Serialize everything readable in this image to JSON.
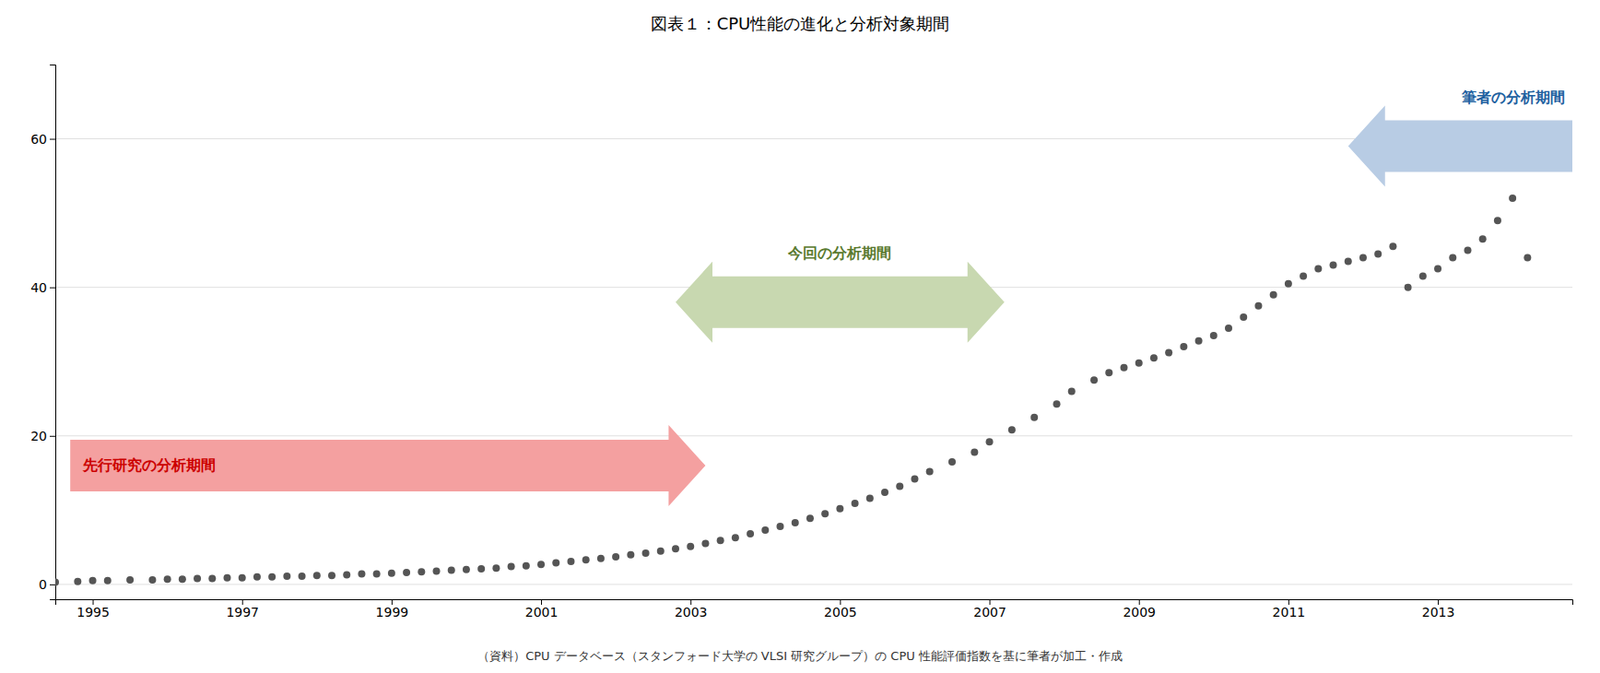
{
  "chart_data": {
    "type": "scatter",
    "title": "図表１：CPU性能の進化と分析対象期間",
    "caption": "（資料）CPU データベース（スタンフォード大学の VLSI 研究グループ）の CPU 性能評価指数を基に筆者が加工・作成",
    "color": "#555555",
    "grid": true,
    "xlim": [
      1994.5,
      2014.8
    ],
    "xticks": [
      1995,
      1997,
      1999,
      2001,
      2003,
      2005,
      2007,
      2009,
      2011,
      2013
    ],
    "ylim": [
      -2,
      70
    ],
    "yticks": [
      0,
      20,
      40,
      60
    ],
    "x": [
      1994.5,
      1994.8,
      1995.0,
      1995.2,
      1995.5,
      1995.8,
      1996.0,
      1996.2,
      1996.4,
      1996.6,
      1996.8,
      1997.0,
      1997.2,
      1997.4,
      1997.6,
      1997.8,
      1998.0,
      1998.2,
      1998.4,
      1998.6,
      1998.8,
      1999.0,
      1999.2,
      1999.4,
      1999.6,
      1999.8,
      2000.0,
      2000.2,
      2000.4,
      2000.6,
      2000.8,
      2001.0,
      2001.2,
      2001.4,
      2001.6,
      2001.8,
      2002.0,
      2002.2,
      2002.4,
      2002.6,
      2002.8,
      2003.0,
      2003.2,
      2003.4,
      2003.6,
      2003.8,
      2004.0,
      2004.2,
      2004.4,
      2004.6,
      2004.8,
      2005.0,
      2005.2,
      2005.4,
      2005.6,
      2005.8,
      2006.0,
      2006.2,
      2006.5,
      2006.8,
      2007.0,
      2007.3,
      2007.6,
      2007.9,
      2008.1,
      2008.4,
      2008.6,
      2008.8,
      2009.0,
      2009.2,
      2009.4,
      2009.6,
      2009.8,
      2010.0,
      2010.2,
      2010.4,
      2010.6,
      2010.8,
      2011.0,
      2011.2,
      2011.4,
      2011.6,
      2011.8,
      2012.0,
      2012.2,
      2012.4,
      2012.6,
      2012.8,
      2013.0,
      2013.2,
      2013.4,
      2013.6,
      2013.8,
      2014.0,
      2014.2
    ],
    "values": [
      0.3,
      0.4,
      0.5,
      0.5,
      0.6,
      0.6,
      0.7,
      0.7,
      0.8,
      0.8,
      0.9,
      0.9,
      1.0,
      1.0,
      1.1,
      1.1,
      1.2,
      1.2,
      1.3,
      1.4,
      1.4,
      1.5,
      1.6,
      1.7,
      1.8,
      1.9,
      2.0,
      2.1,
      2.2,
      2.4,
      2.5,
      2.7,
      2.9,
      3.1,
      3.3,
      3.5,
      3.7,
      4.0,
      4.2,
      4.5,
      4.8,
      5.1,
      5.5,
      5.9,
      6.3,
      6.8,
      7.3,
      7.8,
      8.3,
      8.9,
      9.5,
      10.2,
      10.9,
      11.6,
      12.4,
      13.2,
      14.2,
      15.2,
      16.5,
      17.8,
      19.2,
      20.8,
      22.5,
      24.3,
      26.0,
      27.5,
      28.5,
      29.2,
      29.8,
      30.5,
      31.2,
      32.0,
      32.8,
      33.5,
      34.5,
      36.0,
      37.5,
      39.0,
      40.5,
      41.5,
      42.5,
      43.0,
      43.5,
      44.0,
      44.5,
      45.5,
      40.0,
      41.5,
      42.5,
      44.0,
      45.0,
      46.5,
      49.0,
      52.0,
      44.0
    ],
    "annotations": [
      {
        "text": "先行研究の分析期間",
        "x": [
          1994.7,
          2003.2
        ],
        "y": 16,
        "direction": "right",
        "color": "#f4a0a0",
        "text_color": "#cc0000"
      },
      {
        "text": "今回の分析期間",
        "x": [
          2002.8,
          2007.2
        ],
        "y": 38,
        "direction": "both",
        "color": "#c8d8b0",
        "text_color": "#5a7a30"
      },
      {
        "text": "筆者の分析期間",
        "x": [
          2011.8,
          2014.8
        ],
        "y": 59,
        "direction": "left",
        "color": "#b8cce4",
        "text_color": "#2060a0"
      }
    ]
  }
}
